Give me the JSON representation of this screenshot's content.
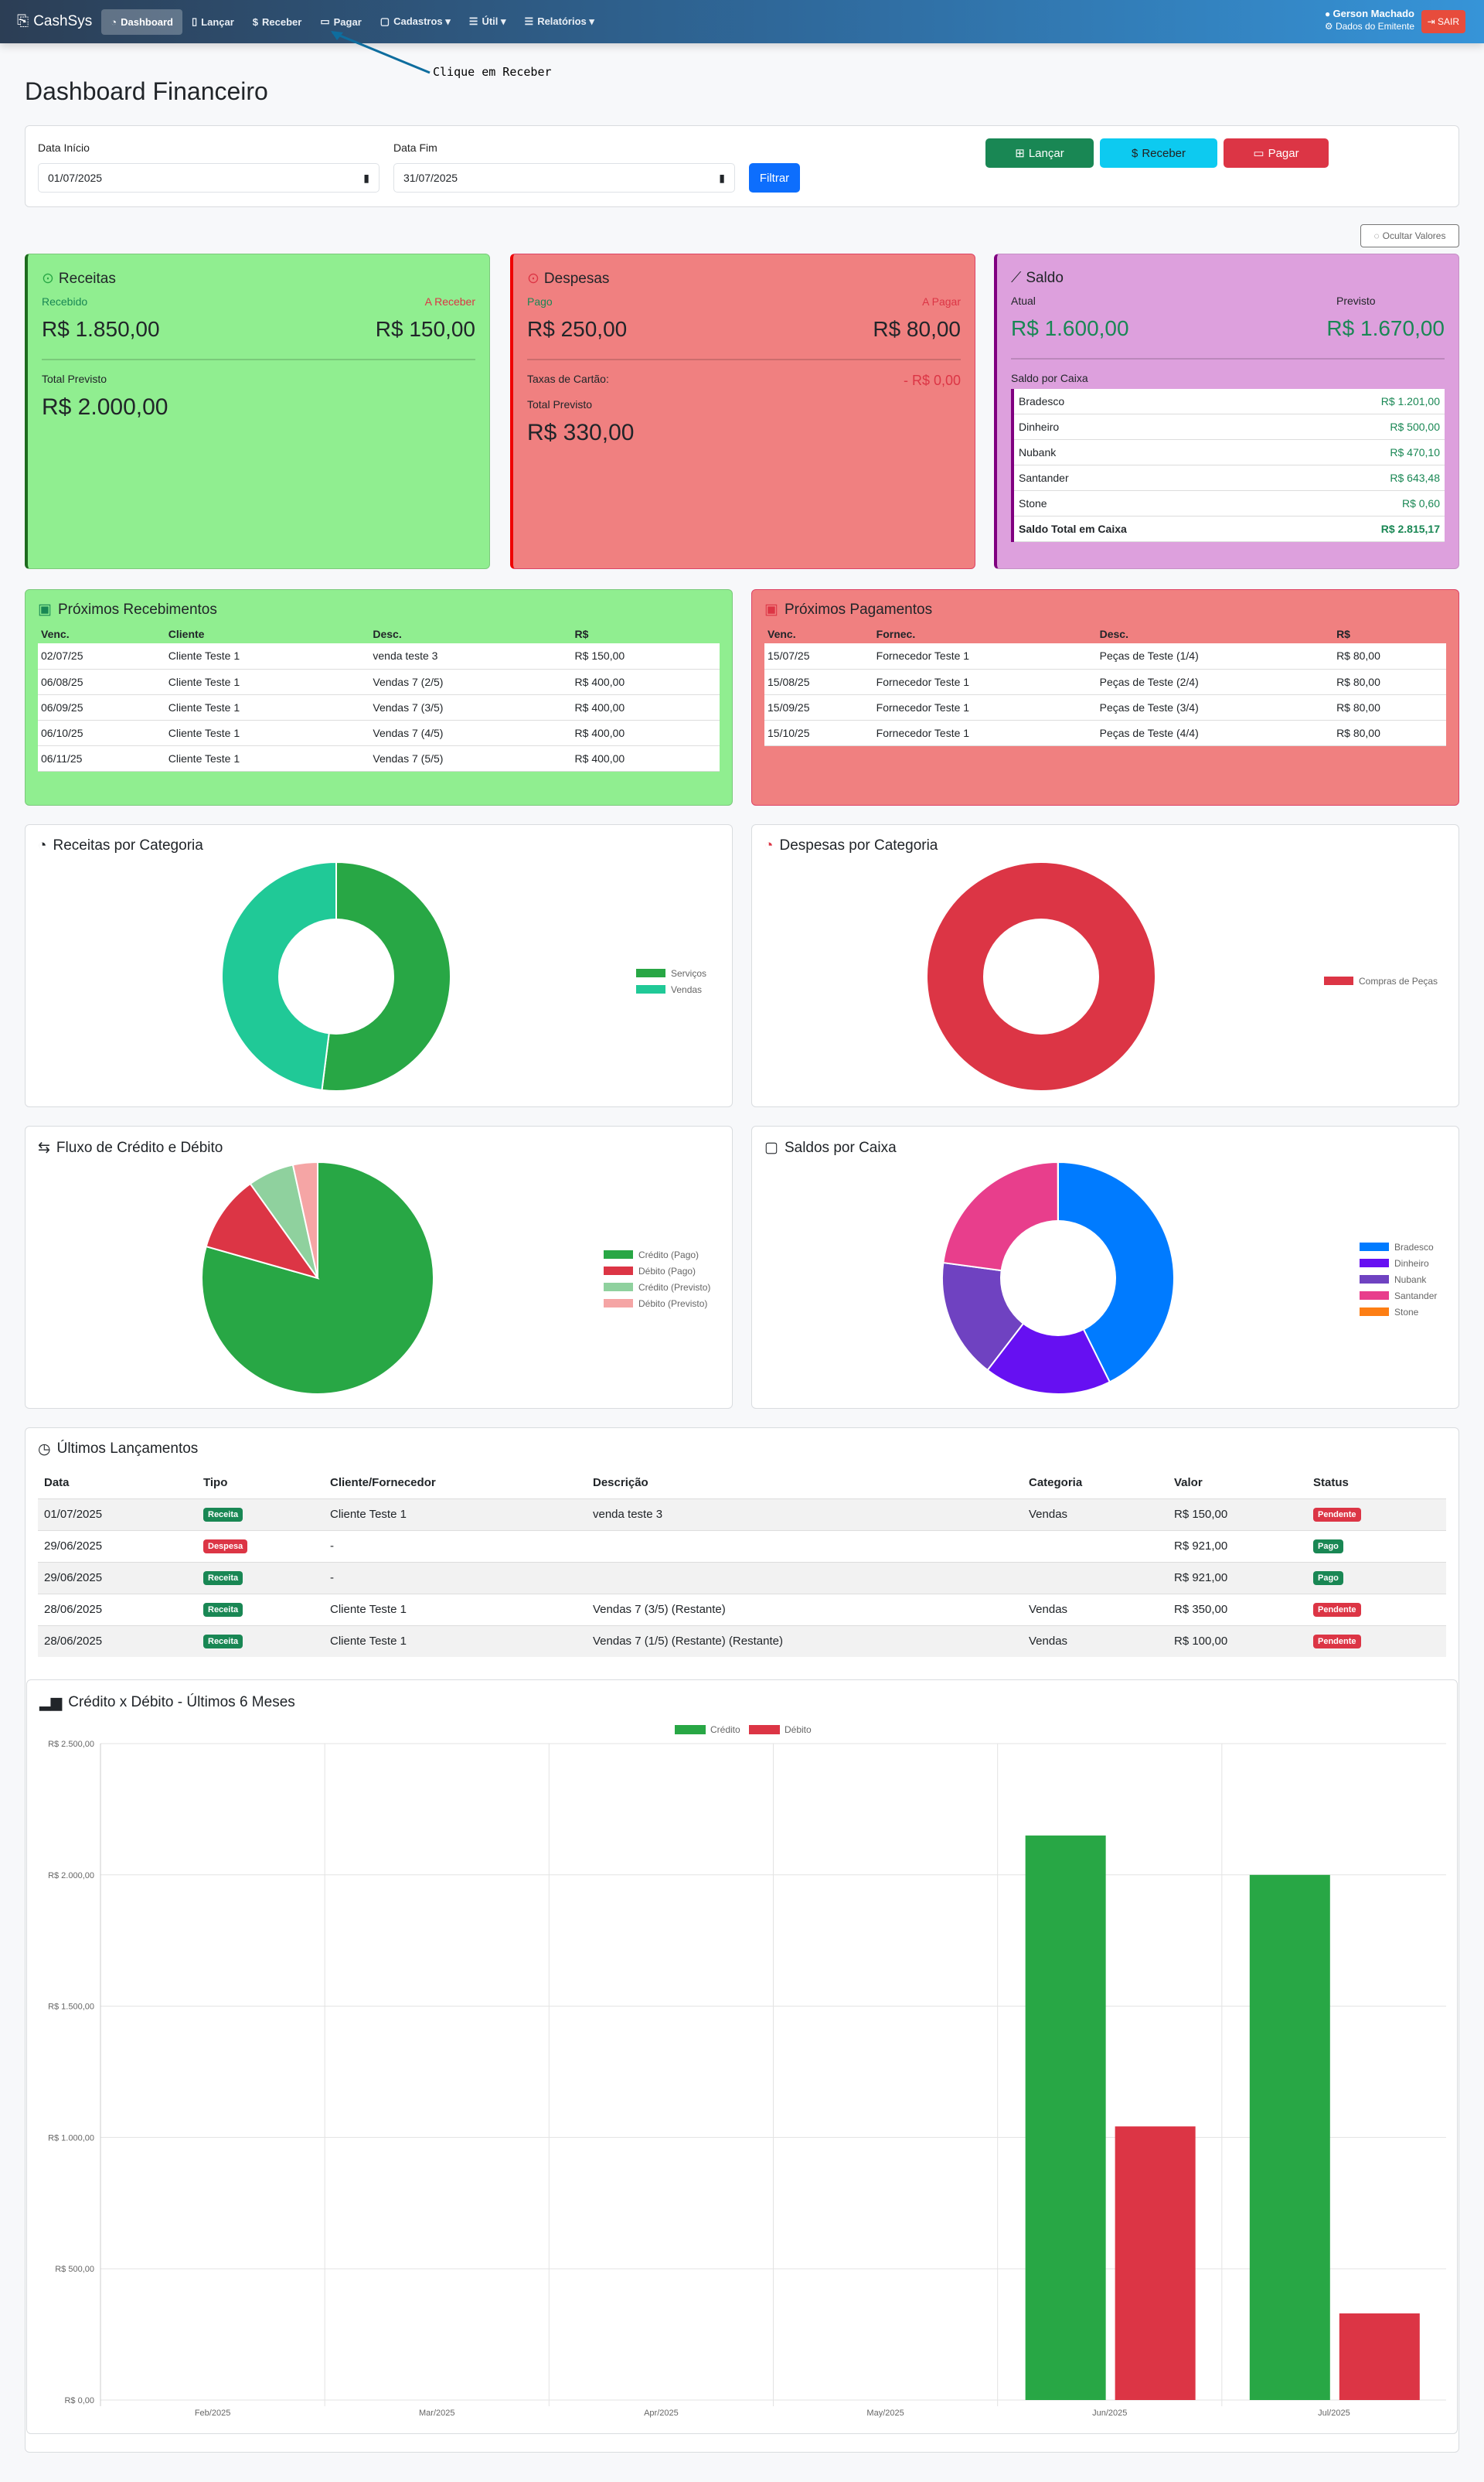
{
  "navbar": {
    "brand": "CashSys",
    "items": [
      {
        "label": "Dashboard",
        "icon": "speedometer-icon",
        "active": true
      },
      {
        "label": "Lançar",
        "icon": "journal-plus-icon"
      },
      {
        "label": "Receber",
        "icon": "cash-icon"
      },
      {
        "label": "Pagar",
        "icon": "credit-card-icon"
      },
      {
        "label": "Cadastros ▾",
        "icon": "folder-plus-icon"
      },
      {
        "label": "Útil ▾",
        "icon": "list-icon"
      },
      {
        "label": "Relatórios ▾",
        "icon": "report-icon"
      }
    ],
    "user": "Gerson Machado",
    "user_sub": "Dados do Emitente",
    "logout": "SAIR"
  },
  "annotation": "Clique em Receber",
  "page_title": "Dashboard Financeiro",
  "filter": {
    "start_label": "Data Início",
    "start_value": "01/07/2025",
    "end_label": "Data Fim",
    "end_value": "31/07/2025",
    "filter_button": "Filtrar",
    "lancar": "Lançar",
    "receber": "Receber",
    "pagar": "Pagar"
  },
  "hide_values": "Ocultar Valores",
  "receitas": {
    "title": "Receitas",
    "recebido_label": "Recebido",
    "recebido": "R$ 1.850,00",
    "areceber_label": "A Receber",
    "areceber": "R$ 150,00",
    "total_label": "Total Previsto",
    "total": "R$ 2.000,00"
  },
  "despesas": {
    "title": "Despesas",
    "pago_label": "Pago",
    "pago": "R$ 250,00",
    "apagar_label": "A Pagar",
    "apagar": "R$ 80,00",
    "taxas_label": "Taxas de Cartão:",
    "taxas": "- R$ 0,00",
    "total_label": "Total Previsto",
    "total": "R$ 330,00"
  },
  "saldo": {
    "title": "Saldo",
    "atual_label": "Atual",
    "atual": "R$ 1.600,00",
    "previsto_label": "Previsto",
    "previsto": "R$ 1.670,00",
    "caixa_label": "Saldo por Caixa",
    "caixas": [
      {
        "name": "Bradesco",
        "value": "R$ 1.201,00"
      },
      {
        "name": "Dinheiro",
        "value": "R$ 500,00"
      },
      {
        "name": "Nubank",
        "value": "R$ 470,10"
      },
      {
        "name": "Santander",
        "value": "R$ 643,48"
      },
      {
        "name": "Stone",
        "value": "R$ 0,60"
      }
    ],
    "total_label": "Saldo Total em Caixa",
    "total": "R$ 2.815,17"
  },
  "recebimentos": {
    "title": "Próximos Recebimentos",
    "headers": [
      "Venc.",
      "Cliente",
      "Desc.",
      "R$"
    ],
    "rows": [
      [
        "02/07/25",
        "Cliente Teste 1",
        "venda teste 3",
        "R$ 150,00"
      ],
      [
        "06/08/25",
        "Cliente Teste 1",
        "Vendas 7 (2/5)",
        "R$ 400,00"
      ],
      [
        "06/09/25",
        "Cliente Teste 1",
        "Vendas 7 (3/5)",
        "R$ 400,00"
      ],
      [
        "06/10/25",
        "Cliente Teste 1",
        "Vendas 7 (4/5)",
        "R$ 400,00"
      ],
      [
        "06/11/25",
        "Cliente Teste 1",
        "Vendas 7 (5/5)",
        "R$ 400,00"
      ]
    ]
  },
  "pagamentos": {
    "title": "Próximos Pagamentos",
    "headers": [
      "Venc.",
      "Fornec.",
      "Desc.",
      "R$"
    ],
    "rows": [
      [
        "15/07/25",
        "Fornecedor Teste 1",
        "Peças de Teste (1/4)",
        "R$ 80,00"
      ],
      [
        "15/08/25",
        "Fornecedor Teste 1",
        "Peças de Teste (2/4)",
        "R$ 80,00"
      ],
      [
        "15/09/25",
        "Fornecedor Teste 1",
        "Peças de Teste (3/4)",
        "R$ 80,00"
      ],
      [
        "15/10/25",
        "Fornecedor Teste 1",
        "Peças de Teste (4/4)",
        "R$ 80,00"
      ]
    ]
  },
  "ultimos": {
    "title": "Últimos Lançamentos",
    "headers": [
      "Data",
      "Tipo",
      "Cliente/Fornecedor",
      "Descrição",
      "Categoria",
      "Valor",
      "Status"
    ],
    "rows": [
      {
        "data": "01/07/2025",
        "tipo": "Receita",
        "cliente": "Cliente Teste 1",
        "desc": "venda teste 3",
        "cat": "Vendas",
        "valor": "R$ 150,00",
        "status": "Pendente"
      },
      {
        "data": "29/06/2025",
        "tipo": "Despesa",
        "cliente": "-",
        "desc": "",
        "cat": "",
        "valor": "R$ 921,00",
        "status": "Pago"
      },
      {
        "data": "29/06/2025",
        "tipo": "Receita",
        "cliente": "-",
        "desc": "",
        "cat": "",
        "valor": "R$ 921,00",
        "status": "Pago"
      },
      {
        "data": "28/06/2025",
        "tipo": "Receita",
        "cliente": "Cliente Teste 1",
        "desc": "Vendas 7 (3/5) (Restante)",
        "cat": "Vendas",
        "valor": "R$ 350,00",
        "status": "Pendente"
      },
      {
        "data": "28/06/2025",
        "tipo": "Receita",
        "cliente": "Cliente Teste 1",
        "desc": "Vendas 7 (1/5) (Restante) (Restante)",
        "cat": "Vendas",
        "valor": "R$ 100,00",
        "status": "Pendente"
      }
    ]
  },
  "chart_data": [
    {
      "type": "pie",
      "donut": true,
      "title": "Receitas por Categoria",
      "legend": "right",
      "labels": [
        "Serviços",
        "Vendas"
      ],
      "values": [
        52,
        48
      ],
      "colors": [
        "#28a745",
        "#20c997"
      ]
    },
    {
      "type": "pie",
      "donut": true,
      "title": "Despesas por Categoria",
      "legend": "right",
      "labels": [
        "Compras de Peças"
      ],
      "values": [
        250
      ],
      "colors": [
        "#dc3545"
      ]
    },
    {
      "type": "pie",
      "donut": false,
      "title": "Fluxo de Crédito e Débito",
      "legend": "right",
      "labels": [
        "Crédito (Pago)",
        "Débito (Pago)",
        "Crédito (Previsto)",
        "Débito (Previsto)"
      ],
      "values": [
        1850,
        250,
        150,
        80
      ],
      "colors": [
        "#28a745",
        "#dc3545",
        "#8fd19e",
        "#f5a5a5"
      ]
    },
    {
      "type": "pie",
      "donut": true,
      "title": "Saldos por Caixa",
      "legend": "right",
      "labels": [
        "Bradesco",
        "Dinheiro",
        "Nubank",
        "Santander",
        "Stone"
      ],
      "values": [
        1201,
        500,
        470.1,
        643.48,
        0.6
      ],
      "colors": [
        "#007bff",
        "#6610f2",
        "#6f42c1",
        "#e83e8c",
        "#fd7e14"
      ]
    },
    {
      "type": "bar",
      "title": "Crédito x Débito - Últimos 6 Meses",
      "legend": "top",
      "categories": [
        "Feb/2025",
        "Mar/2025",
        "Apr/2025",
        "May/2025",
        "Jun/2025",
        "Jul/2025"
      ],
      "series": [
        {
          "name": "Crédito",
          "values": [
            0,
            0,
            0,
            0,
            2150,
            2000
          ],
          "color": "#28a745"
        },
        {
          "name": "Débito",
          "values": [
            0,
            0,
            0,
            0,
            1042,
            330
          ],
          "color": "#dc3545"
        }
      ],
      "ylim": [
        0,
        2500
      ],
      "yticks": [
        "R$ 0,00",
        "R$ 500,00",
        "R$ 1.000,00",
        "R$ 1.500,00",
        "R$ 2.000,00",
        "R$ 2.500,00"
      ],
      "grid": true
    }
  ]
}
